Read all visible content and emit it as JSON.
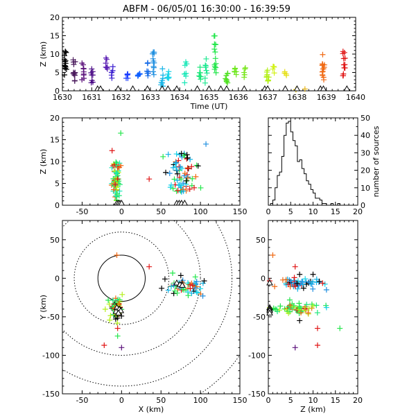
{
  "title": "ABFM - 06/05/01 16:30:00 - 16:39:59",
  "chart_data": [
    {
      "type": "scatter",
      "id": "time_height",
      "xlabel": "Time (UT)",
      "ylabel": "Z (km)",
      "xlim": [
        1630,
        1640
      ],
      "ylim": [
        0,
        20
      ],
      "xticks": [
        "1630",
        "1631",
        "1632",
        "1633",
        "1634",
        "1635",
        "1636",
        "1637",
        "1638",
        "1639",
        "1640"
      ],
      "yticks": [
        "0",
        "5",
        "10",
        "15",
        "20"
      ],
      "stations_x": [
        1631.2,
        1631.3,
        1631.9,
        1632.4,
        1632.9,
        1633.4,
        1633.6,
        1633.9,
        1634.6,
        1635.0,
        1635.4,
        1635.6,
        1636.2,
        1636.9,
        1637.0,
        1637.6,
        1638.0,
        1638.8,
        1638.9,
        1639.7
      ],
      "clusters": [
        {
          "t": 1630.1,
          "zmin": 4,
          "zmax": 11,
          "n": 14,
          "color": "#000000"
        },
        {
          "t": 1630.4,
          "zmin": 2,
          "zmax": 9,
          "n": 12,
          "color": "#4a1a5c"
        },
        {
          "t": 1630.7,
          "zmin": 3,
          "zmax": 8,
          "n": 10,
          "color": "#5a0f7a"
        },
        {
          "t": 1631.0,
          "zmin": 2,
          "zmax": 6,
          "n": 8,
          "color": "#4a0a86"
        },
        {
          "t": 1631.5,
          "zmin": 5,
          "zmax": 9,
          "n": 7,
          "color": "#5b1fb4"
        },
        {
          "t": 1631.7,
          "zmin": 3,
          "zmax": 7,
          "n": 6,
          "color": "#3a1fd0"
        },
        {
          "t": 1632.2,
          "zmin": 3,
          "zmax": 5,
          "n": 5,
          "color": "#1a3cff"
        },
        {
          "t": 1632.6,
          "zmin": 3,
          "zmax": 7,
          "n": 6,
          "color": "#0a5cff"
        },
        {
          "t": 1632.9,
          "zmin": 4,
          "zmax": 8,
          "n": 7,
          "color": "#1b6ee8"
        },
        {
          "t": 1633.1,
          "zmin": 4,
          "zmax": 11,
          "n": 12,
          "color": "#1f8fe0"
        },
        {
          "t": 1633.4,
          "zmin": 1,
          "zmax": 6,
          "n": 8,
          "color": "#14b4e6"
        },
        {
          "t": 1633.6,
          "zmin": 3,
          "zmax": 6,
          "n": 6,
          "color": "#17d3e8"
        },
        {
          "t": 1634.2,
          "zmin": 2,
          "zmax": 9,
          "n": 8,
          "color": "#19e8b8"
        },
        {
          "t": 1634.7,
          "zmin": 3,
          "zmax": 8,
          "n": 7,
          "color": "#1de67a"
        },
        {
          "t": 1634.9,
          "zmin": 2,
          "zmax": 9,
          "n": 8,
          "color": "#1de890"
        },
        {
          "t": 1635.2,
          "zmin": 4,
          "zmax": 16,
          "n": 14,
          "color": "#22e64a"
        },
        {
          "t": 1635.6,
          "zmin": 2,
          "zmax": 7,
          "n": 8,
          "color": "#4de01e"
        },
        {
          "t": 1635.9,
          "zmin": 4,
          "zmax": 7,
          "n": 6,
          "color": "#6ee81c"
        },
        {
          "t": 1636.2,
          "zmin": 3,
          "zmax": 7,
          "n": 5,
          "color": "#78e61a"
        },
        {
          "t": 1637.0,
          "zmin": 2,
          "zmax": 6,
          "n": 9,
          "color": "#b4f01a"
        },
        {
          "t": 1637.2,
          "zmin": 4,
          "zmax": 7,
          "n": 5,
          "color": "#d2f21a"
        },
        {
          "t": 1637.6,
          "zmin": 4,
          "zmax": 6,
          "n": 4,
          "color": "#e6e01a"
        },
        {
          "t": 1638.0,
          "zmin": 0,
          "zmax": 0.5,
          "n": 2,
          "color": "#e6c81a"
        },
        {
          "t": 1638.9,
          "zmin": 3,
          "zmax": 10,
          "n": 14,
          "color": "#f06a14"
        },
        {
          "t": 1639.6,
          "zmin": 4,
          "zmax": 11,
          "n": 12,
          "color": "#e01414"
        },
        {
          "t": 1638.3,
          "zmin": 0.5,
          "zmax": 0.5,
          "n": 1,
          "color": "#e6b41a"
        }
      ]
    },
    {
      "type": "scatter",
      "id": "x_height",
      "xlabel": "",
      "ylabel": "Z (km)",
      "xlim": [
        -75,
        150
      ],
      "ylim": [
        0,
        20
      ],
      "xticks": [
        "-50",
        "0",
        "50",
        "100",
        "150"
      ],
      "yticks": [
        "0",
        "5",
        "10",
        "15",
        "20"
      ],
      "stations_x": [
        -6,
        -4,
        -2,
        0,
        70,
        73,
        76,
        80
      ],
      "clusters": [
        {
          "x": -7,
          "zmin": 1,
          "zmax": 10,
          "spread": 5,
          "n": 70,
          "colors": [
            "#22e64a",
            "#f06a14",
            "#e01414",
            "#1de67a",
            "#b4f01a",
            "#19e8b8"
          ]
        },
        {
          "x": 75,
          "zmin": 3,
          "zmax": 12,
          "spread": 18,
          "n": 70,
          "colors": [
            "#1f8fe0",
            "#14b4e6",
            "#17d3e8",
            "#000000",
            "#f06a14",
            "#e01414",
            "#22e64a"
          ]
        }
      ],
      "extra_points": [
        {
          "x": -1,
          "z": 16.5,
          "color": "#22e64a"
        },
        {
          "x": -12,
          "z": 12.5,
          "color": "#e01414"
        },
        {
          "x": 35,
          "z": 6,
          "color": "#e01414"
        },
        {
          "x": 107,
          "z": 14,
          "color": "#1f8fe0"
        },
        {
          "x": 56,
          "z": 7.5,
          "color": "#000000"
        },
        {
          "x": 97,
          "z": 9,
          "color": "#000000"
        },
        {
          "x": 92,
          "z": 4,
          "color": "#e01414"
        }
      ]
    },
    {
      "type": "bar",
      "id": "histogram",
      "xlabel": "",
      "ylabel": "number of sources",
      "xlim": [
        0,
        20
      ],
      "ylim": [
        0,
        50
      ],
      "xticks": [
        "0",
        "5",
        "10",
        "15",
        "20"
      ],
      "yticks": [
        "0",
        "10",
        "20",
        "30",
        "40",
        "50"
      ],
      "bin_width": 0.5,
      "bin_start": 0,
      "values": [
        0,
        1,
        3,
        10,
        17,
        19,
        28,
        40,
        47,
        48,
        42,
        37,
        34,
        25,
        26,
        21,
        18,
        14,
        12,
        9,
        7,
        4,
        4,
        3,
        1,
        1,
        0,
        0,
        1,
        0,
        0,
        1,
        0,
        0,
        0,
        0,
        0,
        0,
        0,
        0
      ]
    },
    {
      "type": "scatter",
      "id": "plan_view",
      "xlabel": "X (km)",
      "ylabel": "Y (km)",
      "xlim": [
        -75,
        150
      ],
      "ylim": [
        -150,
        75
      ],
      "xticks": [
        "-50",
        "0",
        "50",
        "100",
        "150"
      ],
      "yticks": [
        "-150",
        "-100",
        "-50",
        "0",
        "50"
      ],
      "rings_km": [
        30,
        60,
        100,
        140,
        180
      ],
      "stations": [
        [
          -6,
          -38
        ],
        [
          -3,
          -40
        ],
        [
          -1,
          -42
        ],
        [
          -7,
          -43
        ],
        [
          -4,
          -45
        ],
        [
          70,
          -6
        ],
        [
          74,
          -8
        ],
        [
          77,
          -9
        ]
      ],
      "clusters": [
        {
          "cx": -6,
          "cy": -40,
          "sx": 4,
          "sy": 7,
          "n": 60,
          "colors": [
            "#22e64a",
            "#f06a14",
            "#e01414",
            "#000000",
            "#1de67a",
            "#b4f01a"
          ]
        },
        {
          "cx": 80,
          "cy": -10,
          "sx": 12,
          "sy": 5,
          "n": 55,
          "colors": [
            "#000000",
            "#1f8fe0",
            "#14b4e6",
            "#17d3e8",
            "#e01414",
            "#f06a14",
            "#22e64a"
          ]
        }
      ],
      "extra_points": [
        {
          "x": -6,
          "y": 30,
          "color": "#f06a14"
        },
        {
          "x": 35,
          "y": 15,
          "color": "#e01414"
        },
        {
          "x": -5,
          "y": -65,
          "color": "#e01414"
        },
        {
          "x": -5,
          "y": -75,
          "color": "#22e64a"
        },
        {
          "x": -22,
          "y": -87,
          "color": "#e01414"
        },
        {
          "x": 0,
          "y": -90,
          "color": "#5a0f7a"
        },
        {
          "x": 103,
          "y": -23,
          "color": "#1f8fe0"
        },
        {
          "x": 95,
          "y": -18,
          "color": "#17d3e8"
        },
        {
          "x": 55,
          "y": -1,
          "color": "#000000"
        }
      ]
    },
    {
      "type": "scatter",
      "id": "height_y",
      "xlabel": "Z (km)",
      "ylabel": "",
      "xlim": [
        0,
        20
      ],
      "ylim": [
        -150,
        75
      ],
      "xticks": [
        "0",
        "5",
        "10",
        "15",
        "20"
      ],
      "yticks": [
        "-150",
        "-100",
        "-50",
        "0",
        "50"
      ],
      "stations_y": [
        -6,
        -38,
        -40,
        -42,
        -45
      ],
      "clusters": [
        {
          "cz": 6,
          "cy": -40,
          "sz": 3,
          "sy": 4,
          "n": 60,
          "colors": [
            "#22e64a",
            "#f06a14",
            "#e01414",
            "#1de67a",
            "#b4f01a"
          ]
        },
        {
          "cz": 7,
          "cy": -7,
          "sz": 2.5,
          "sy": 3,
          "n": 55,
          "colors": [
            "#000000",
            "#1f8fe0",
            "#14b4e6",
            "#e01414",
            "#f06a14",
            "#17d3e8"
          ]
        }
      ],
      "extra_points": [
        {
          "z": 1,
          "y": 30,
          "color": "#f06a14"
        },
        {
          "z": 6,
          "y": 15,
          "color": "#e01414"
        },
        {
          "z": 7,
          "y": 5,
          "color": "#000000"
        },
        {
          "z": 10,
          "y": 5,
          "color": "#000000"
        },
        {
          "z": 13,
          "y": -15,
          "color": "#1f8fe0"
        },
        {
          "z": 11,
          "y": -65,
          "color": "#e01414"
        },
        {
          "z": 16,
          "y": -65,
          "color": "#22e64a"
        },
        {
          "z": 11,
          "y": -87,
          "color": "#e01414"
        },
        {
          "z": 6,
          "y": -90,
          "color": "#5a0f7a"
        },
        {
          "z": 7,
          "y": -55,
          "color": "#000000"
        },
        {
          "z": 13,
          "y": -38,
          "color": "#17d3e8"
        }
      ]
    }
  ]
}
